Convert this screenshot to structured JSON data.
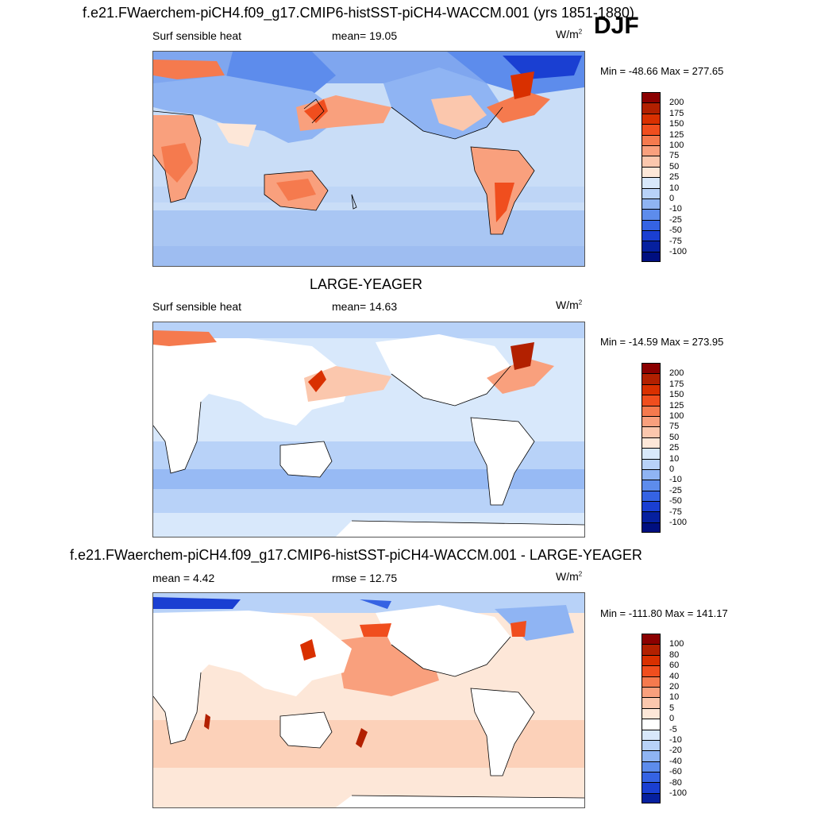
{
  "season": "DJF",
  "units": "W/m",
  "units_sup": "2",
  "panels": [
    {
      "title": "f.e21.FWaerchem-piCH4.f09_g17.CMIP6-histSST-piCH4-WACCM.001 (yrs 1851-1880)",
      "left_label": "Surf sensible heat",
      "center_label": "mean=  19.05",
      "minmax": "Min = -48.66 Max = 277.65",
      "colorbar_ticks": [
        "200",
        "175",
        "150",
        "125",
        "100",
        "75",
        "50",
        "25",
        "10",
        "0",
        "-10",
        "-25",
        "-50",
        "-75",
        "-100"
      ]
    },
    {
      "title": "LARGE-YEAGER",
      "left_label": "Surf sensible heat",
      "center_label": "mean=  14.63",
      "minmax": "Min = -14.59 Max = 273.95",
      "colorbar_ticks": [
        "200",
        "175",
        "150",
        "125",
        "100",
        "75",
        "50",
        "25",
        "10",
        "0",
        "-10",
        "-25",
        "-50",
        "-75",
        "-100"
      ]
    },
    {
      "title": "f.e21.FWaerchem-piCH4.f09_g17.CMIP6-histSST-piCH4-WACCM.001 - LARGE-YEAGER",
      "left_label": "mean =   4.42",
      "center_label": "rmse =  12.75",
      "minmax": "Min = -111.80 Max = 141.17",
      "colorbar_ticks": [
        "100",
        "80",
        "60",
        "40",
        "20",
        "10",
        "5",
        "0",
        "-5",
        "-10",
        "-20",
        "-40",
        "-60",
        "-80",
        "-100"
      ]
    }
  ],
  "colorbar_colors": [
    "#8b0000",
    "#b22000",
    "#d93000",
    "#f04e1e",
    "#f57a4e",
    "#f9a07d",
    "#fbc7ad",
    "#fde7d8",
    "#d8e8fb",
    "#b8d2f8",
    "#8fb4f3",
    "#5d8cec",
    "#3563e3",
    "#1a3fd2",
    "#06209f",
    "#000f80"
  ],
  "colorbar_colors_diff": [
    "#8b0000",
    "#b22000",
    "#d93000",
    "#f04e1e",
    "#f57a4e",
    "#f9a07d",
    "#fbc7ad",
    "#fde7d8",
    "#ffffff",
    "#d8e8fb",
    "#b8d2f8",
    "#8fb4f3",
    "#5d8cec",
    "#3563e3",
    "#1a3fd2",
    "#06209f",
    "#000f80"
  ]
}
